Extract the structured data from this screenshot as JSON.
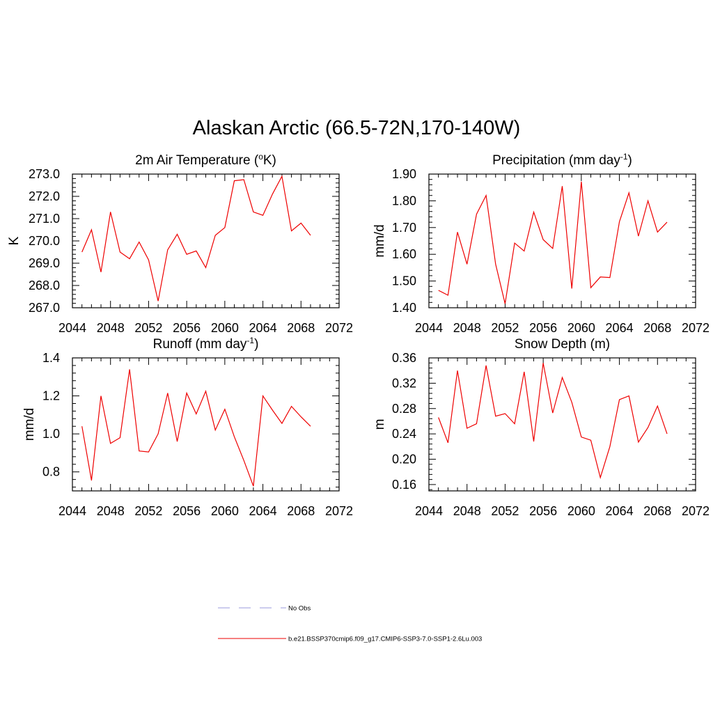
{
  "title": "Alaskan Arctic (66.5-72N,170-140W)",
  "colors": {
    "series": "#ee0000",
    "obs": "#9999dd",
    "axes": "#000000"
  },
  "legend": [
    {
      "label": "No Obs",
      "style": "dashed",
      "color": "#9999dd"
    },
    {
      "label": "b.e21.BSSP370cmip6.f09_g17.CMIP6-SSP3-7.0-SSP1-2.6Lu.003",
      "style": "solid",
      "color": "#ee0000"
    }
  ],
  "chart_data": [
    {
      "type": "line",
      "title": "2m Air Temperature (",
      "title_sup": "o",
      "title_end": "K)",
      "ylabel": "K",
      "xlim": [
        2044,
        2072
      ],
      "ylim": [
        267.0,
        273.0
      ],
      "xticks": [
        "2044",
        "2048",
        "2052",
        "2056",
        "2060",
        "2064",
        "2068",
        "2072"
      ],
      "yticks": [
        "267.0",
        "268.0",
        "269.0",
        "270.0",
        "271.0",
        "272.0",
        "273.0"
      ],
      "x": [
        2045,
        2046,
        2047,
        2048,
        2049,
        2050,
        2051,
        2052,
        2053,
        2054,
        2055,
        2056,
        2057,
        2058,
        2059,
        2060,
        2061,
        2062,
        2063,
        2064,
        2065,
        2066,
        2067,
        2068,
        2069
      ],
      "series": [
        {
          "values": [
            269.5,
            270.5,
            268.6,
            271.3,
            269.5,
            269.2,
            269.95,
            269.15,
            267.3,
            269.6,
            270.3,
            269.4,
            269.55,
            268.8,
            270.25,
            270.6,
            272.7,
            272.75,
            271.3,
            271.15,
            272.1,
            272.9,
            270.45,
            270.8,
            270.25
          ]
        }
      ]
    },
    {
      "type": "line",
      "title": "Precipitation (mm day",
      "title_sup": "-1",
      "title_end": ")",
      "ylabel": "mm/d",
      "xlim": [
        2044,
        2072
      ],
      "ylim": [
        1.4,
        1.9
      ],
      "xticks": [
        "2044",
        "2048",
        "2052",
        "2056",
        "2060",
        "2064",
        "2068",
        "2072"
      ],
      "yticks": [
        "1.40",
        "1.50",
        "1.60",
        "1.70",
        "1.80",
        "1.90"
      ],
      "x": [
        2045,
        2046,
        2047,
        2048,
        2049,
        2050,
        2051,
        2052,
        2053,
        2054,
        2055,
        2056,
        2057,
        2058,
        2059,
        2060,
        2061,
        2062,
        2063,
        2064,
        2065,
        2066,
        2067,
        2068,
        2069
      ],
      "series": [
        {
          "values": [
            1.465,
            1.447,
            1.683,
            1.563,
            1.75,
            1.82,
            1.563,
            1.415,
            1.642,
            1.612,
            1.758,
            1.655,
            1.622,
            1.855,
            1.472,
            1.872,
            1.475,
            1.515,
            1.513,
            1.722,
            1.83,
            1.668,
            1.8,
            1.683,
            1.72
          ]
        }
      ]
    },
    {
      "type": "line",
      "title": "Runoff (mm day",
      "title_sup": "-1",
      "title_end": ")",
      "ylabel": "mm/d",
      "xlim": [
        2044,
        2072
      ],
      "ylim": [
        0.7,
        1.4
      ],
      "xticks": [
        "2044",
        "2048",
        "2052",
        "2056",
        "2060",
        "2064",
        "2068",
        "2072"
      ],
      "yticks": [
        "0.8",
        "1.0",
        "1.2",
        "1.4"
      ],
      "ytick_values": [
        0.8,
        1.0,
        1.2,
        1.4
      ],
      "x": [
        2045,
        2046,
        2047,
        2048,
        2049,
        2050,
        2051,
        2052,
        2053,
        2054,
        2055,
        2056,
        2057,
        2058,
        2059,
        2060,
        2061,
        2062,
        2063,
        2064,
        2065,
        2066,
        2067,
        2068,
        2069
      ],
      "series": [
        {
          "values": [
            1.04,
            0.755,
            1.2,
            0.95,
            0.98,
            1.34,
            0.91,
            0.905,
            1.0,
            1.215,
            0.96,
            1.215,
            1.105,
            1.225,
            1.02,
            1.13,
            0.985,
            0.86,
            0.725,
            1.2,
            1.125,
            1.055,
            1.145,
            1.09,
            1.04
          ]
        }
      ]
    },
    {
      "type": "line",
      "title": "Snow Depth (m)",
      "title_sup": "",
      "title_end": "",
      "ylabel": "m",
      "xlim": [
        2044,
        2072
      ],
      "ylim": [
        0.15,
        0.36
      ],
      "xticks": [
        "2044",
        "2048",
        "2052",
        "2056",
        "2060",
        "2064",
        "2068",
        "2072"
      ],
      "yticks": [
        "0.16",
        "0.20",
        "0.24",
        "0.28",
        "0.32",
        "0.36"
      ],
      "ytick_values": [
        0.16,
        0.2,
        0.24,
        0.28,
        0.32,
        0.36
      ],
      "x": [
        2045,
        2046,
        2047,
        2048,
        2049,
        2050,
        2051,
        2052,
        2053,
        2054,
        2055,
        2056,
        2057,
        2058,
        2059,
        2060,
        2061,
        2062,
        2063,
        2064,
        2065,
        2066,
        2067,
        2068,
        2069
      ],
      "series": [
        {
          "values": [
            0.266,
            0.226,
            0.34,
            0.249,
            0.256,
            0.348,
            0.268,
            0.272,
            0.256,
            0.338,
            0.228,
            0.352,
            0.273,
            0.329,
            0.29,
            0.235,
            0.23,
            0.171,
            0.22,
            0.294,
            0.3,
            0.227,
            0.25,
            0.284,
            0.24
          ]
        }
      ]
    }
  ]
}
